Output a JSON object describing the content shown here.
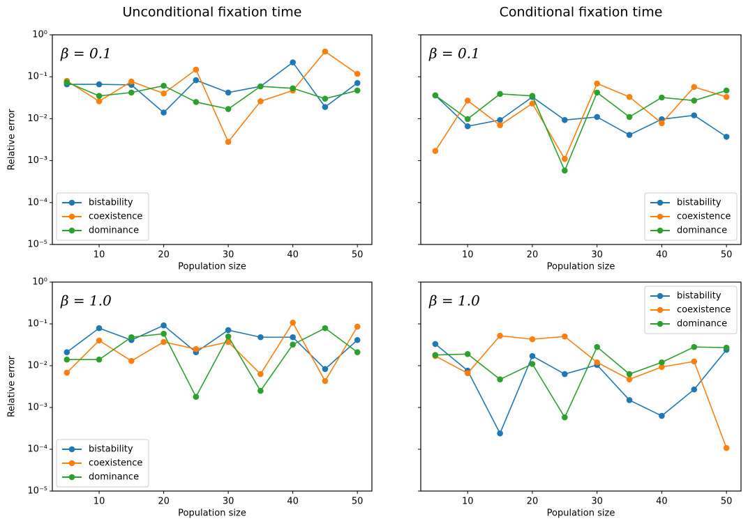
{
  "chart_data": [
    {
      "type": "line",
      "title": "Unconditional fixation time",
      "annotation": "β = 0.1",
      "xlabel": "Population size",
      "ylabel": "Relative error",
      "x": [
        5,
        10,
        15,
        20,
        25,
        30,
        35,
        40,
        45,
        50
      ],
      "xlim": [
        2.75,
        52.25
      ],
      "xticks": [
        10,
        20,
        30,
        40,
        50
      ],
      "ylog": true,
      "ylim": [
        1e-05,
        1
      ],
      "yticks": [
        {
          "value": 1e-05,
          "label": "10⁻⁵"
        },
        {
          "value": 0.0001,
          "label": "10⁻⁴"
        },
        {
          "value": 0.001,
          "label": "10⁻³"
        },
        {
          "value": 0.01,
          "label": "10⁻²"
        },
        {
          "value": 0.1,
          "label": "10⁻¹"
        },
        {
          "value": 1,
          "label": "10⁰"
        }
      ],
      "ytick_labels": true,
      "legend": "lower left",
      "series": [
        {
          "name": "bistability",
          "color": "#1f77b4",
          "values": [
            0.066,
            0.066,
            0.064,
            0.014,
            0.083,
            0.042,
            0.059,
            0.22,
            0.019,
            0.071
          ]
        },
        {
          "name": "coexistence",
          "color": "#ff7f0e",
          "values": [
            0.08,
            0.026,
            0.077,
            0.04,
            0.148,
            0.0028,
            0.026,
            0.047,
            0.4,
            0.117
          ]
        },
        {
          "name": "dominance",
          "color": "#2ca02c",
          "values": [
            0.074,
            0.035,
            0.042,
            0.061,
            0.025,
            0.017,
            0.059,
            0.053,
            0.03,
            0.047
          ]
        }
      ]
    },
    {
      "type": "line",
      "title": "Conditional fixation time",
      "annotation": "β = 0.1",
      "xlabel": "Population size",
      "x": [
        5,
        10,
        15,
        20,
        25,
        30,
        35,
        40,
        45,
        50
      ],
      "xlim": [
        2.75,
        52.25
      ],
      "xticks": [
        10,
        20,
        30,
        40,
        50
      ],
      "ylog": true,
      "ylim": [
        1e-05,
        1
      ],
      "yticks": [
        1e-05,
        0.0001,
        0.001,
        0.01,
        0.1,
        1
      ],
      "ytick_labels": false,
      "legend": "lower right",
      "series": [
        {
          "name": "bistability",
          "color": "#1f77b4",
          "values": [
            0.036,
            0.0066,
            0.0093,
            0.033,
            0.0093,
            0.011,
            0.0041,
            0.0097,
            0.012,
            0.0037
          ]
        },
        {
          "name": "coexistence",
          "color": "#ff7f0e",
          "values": [
            0.0017,
            0.027,
            0.007,
            0.023,
            0.0011,
            0.069,
            0.033,
            0.0078,
            0.057,
            0.033
          ]
        },
        {
          "name": "dominance",
          "color": "#2ca02c",
          "values": [
            0.036,
            0.0098,
            0.039,
            0.035,
            0.00058,
            0.042,
            0.011,
            0.032,
            0.027,
            0.047
          ]
        }
      ]
    },
    {
      "type": "line",
      "annotation": "β = 1.0",
      "xlabel": "Population size",
      "ylabel": "Relative error",
      "x": [
        5,
        10,
        15,
        20,
        25,
        30,
        35,
        40,
        45,
        50
      ],
      "xlim": [
        2.75,
        52.25
      ],
      "xticks": [
        10,
        20,
        30,
        40,
        50
      ],
      "ylog": true,
      "ylim": [
        1e-05,
        1
      ],
      "yticks": [
        {
          "value": 1e-05,
          "label": "10⁻⁵"
        },
        {
          "value": 0.0001,
          "label": "10⁻⁴"
        },
        {
          "value": 0.001,
          "label": "10⁻³"
        },
        {
          "value": 0.01,
          "label": "10⁻²"
        },
        {
          "value": 0.1,
          "label": "10⁻¹"
        },
        {
          "value": 1,
          "label": "10⁰"
        }
      ],
      "ytick_labels": true,
      "legend": "lower left",
      "series": [
        {
          "name": "bistability",
          "color": "#1f77b4",
          "values": [
            0.021,
            0.079,
            0.041,
            0.092,
            0.021,
            0.071,
            0.048,
            0.048,
            0.0083,
            0.041
          ]
        },
        {
          "name": "coexistence",
          "color": "#ff7f0e",
          "values": [
            0.0068,
            0.04,
            0.013,
            0.037,
            0.025,
            0.037,
            0.0063,
            0.107,
            0.0043,
            0.086
          ]
        },
        {
          "name": "dominance",
          "color": "#2ca02c",
          "values": [
            0.014,
            0.014,
            0.048,
            0.058,
            0.0018,
            0.05,
            0.0025,
            0.032,
            0.079,
            0.021
          ]
        }
      ]
    },
    {
      "type": "line",
      "annotation": "β = 1.0",
      "xlabel": "Population size",
      "x": [
        5,
        10,
        15,
        20,
        25,
        30,
        35,
        40,
        45,
        50
      ],
      "xlim": [
        2.75,
        52.25
      ],
      "xticks": [
        10,
        20,
        30,
        40,
        50
      ],
      "ylog": true,
      "ylim": [
        1e-05,
        1
      ],
      "yticks": [
        1e-05,
        0.0001,
        0.001,
        0.01,
        0.1,
        1
      ],
      "ytick_labels": false,
      "legend": "upper right",
      "series": [
        {
          "name": "bistability",
          "color": "#1f77b4",
          "values": [
            0.033,
            0.0076,
            0.00024,
            0.017,
            0.0063,
            0.0104,
            0.0015,
            0.00063,
            0.0027,
            0.024
          ]
        },
        {
          "name": "coexistence",
          "color": "#ff7f0e",
          "values": [
            0.017,
            0.0066,
            0.052,
            0.043,
            0.05,
            0.012,
            0.0047,
            0.0093,
            0.0126,
            0.000107
          ]
        },
        {
          "name": "dominance",
          "color": "#2ca02c",
          "values": [
            0.018,
            0.019,
            0.0047,
            0.011,
            0.00058,
            0.028,
            0.0063,
            0.012,
            0.028,
            0.027
          ]
        }
      ]
    }
  ]
}
